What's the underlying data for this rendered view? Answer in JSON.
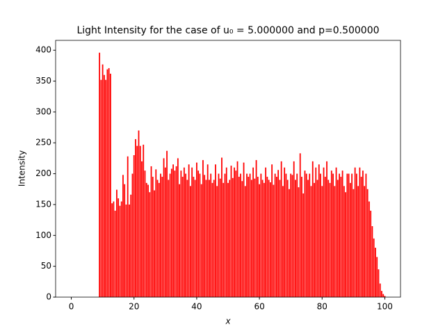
{
  "chart_data": {
    "type": "bar",
    "title": "Light Intensity for the case of u₀ = 5.000000 and p=0.500000",
    "xlabel": "x",
    "ylabel": "Intensity",
    "color": "#ff0000",
    "x": [
      9,
      9.5,
      10,
      10.5,
      11,
      11.5,
      12,
      12.5,
      13,
      13.5,
      14,
      14.5,
      15,
      15.5,
      16,
      16.5,
      17,
      17.5,
      18,
      18.5,
      19,
      19.5,
      20,
      20.5,
      21,
      21.5,
      22,
      22.5,
      23,
      23.5,
      24,
      24.5,
      25,
      25.5,
      26,
      26.5,
      27,
      27.5,
      28,
      28.5,
      29,
      29.5,
      30,
      30.5,
      31,
      31.5,
      32,
      32.5,
      33,
      33.5,
      34,
      34.5,
      35,
      35.5,
      36,
      36.5,
      37,
      37.5,
      38,
      38.5,
      39,
      39.5,
      40,
      40.5,
      41,
      41.5,
      42,
      42.5,
      43,
      43.5,
      44,
      44.5,
      45,
      45.5,
      46,
      46.5,
      47,
      47.5,
      48,
      48.5,
      49,
      49.5,
      50,
      50.5,
      51,
      51.5,
      52,
      52.5,
      53,
      53.5,
      54,
      54.5,
      55,
      55.5,
      56,
      56.5,
      57,
      57.5,
      58,
      58.5,
      59,
      59.5,
      60,
      60.5,
      61,
      61.5,
      62,
      62.5,
      63,
      63.5,
      64,
      64.5,
      65,
      65.5,
      66,
      66.5,
      67,
      67.5,
      68,
      68.5,
      69,
      69.5,
      70,
      70.5,
      71,
      71.5,
      72,
      72.5,
      73,
      73.5,
      74,
      74.5,
      75,
      75.5,
      76,
      76.5,
      77,
      77.5,
      78,
      78.5,
      79,
      79.5,
      80,
      80.5,
      81,
      81.5,
      82,
      82.5,
      83,
      83.5,
      84,
      84.5,
      85,
      85.5,
      86,
      86.5,
      87,
      87.5,
      88,
      88.5,
      89,
      89.5,
      90,
      90.5,
      91,
      91.5,
      92,
      92.5,
      93,
      93.5,
      94,
      94.5,
      95,
      95.5,
      96,
      96.5,
      97,
      97.5,
      98,
      98.5,
      99,
      99.5,
      100
    ],
    "values": [
      396,
      352,
      377,
      360,
      352,
      369,
      371,
      362,
      152,
      155,
      140,
      174,
      160,
      148,
      155,
      198,
      183,
      150,
      228,
      150,
      166,
      200,
      230,
      256,
      245,
      270,
      245,
      220,
      247,
      205,
      185,
      182,
      170,
      212,
      195,
      173,
      207,
      190,
      185,
      200,
      195,
      225,
      210,
      237,
      190,
      200,
      208,
      215,
      205,
      212,
      225,
      183,
      205,
      195,
      210,
      200,
      190,
      215,
      180,
      210,
      195,
      190,
      218,
      205,
      200,
      183,
      222,
      198,
      190,
      215,
      190,
      200,
      185,
      190,
      215,
      180,
      200,
      192,
      226,
      185,
      200,
      210,
      185,
      190,
      213,
      193,
      210,
      205,
      220,
      195,
      200,
      188,
      218,
      180,
      200,
      195,
      200,
      190,
      210,
      192,
      222,
      195,
      183,
      200,
      190,
      185,
      210,
      195,
      190,
      186,
      215,
      182,
      200,
      195,
      206,
      190,
      220,
      180,
      210,
      200,
      190,
      175,
      200,
      198,
      220,
      190,
      200,
      178,
      233,
      195,
      168,
      205,
      200,
      190,
      200,
      180,
      220,
      185,
      210,
      190,
      215,
      200,
      180,
      210,
      195,
      220,
      190,
      185,
      205,
      200,
      180,
      210,
      190,
      200,
      195,
      205,
      180,
      170,
      200,
      200,
      185,
      200,
      175,
      210,
      200,
      180,
      210,
      195,
      205,
      180,
      200,
      175,
      155,
      140,
      115,
      95,
      80,
      65,
      45,
      22,
      10,
      5,
      2
    ],
    "xlim": [
      -5,
      105
    ],
    "xticks": [
      0,
      20,
      40,
      60,
      80,
      100
    ],
    "ylim": [
      0,
      416
    ],
    "yticks": [
      0,
      50,
      100,
      150,
      200,
      250,
      300,
      350,
      400
    ]
  }
}
